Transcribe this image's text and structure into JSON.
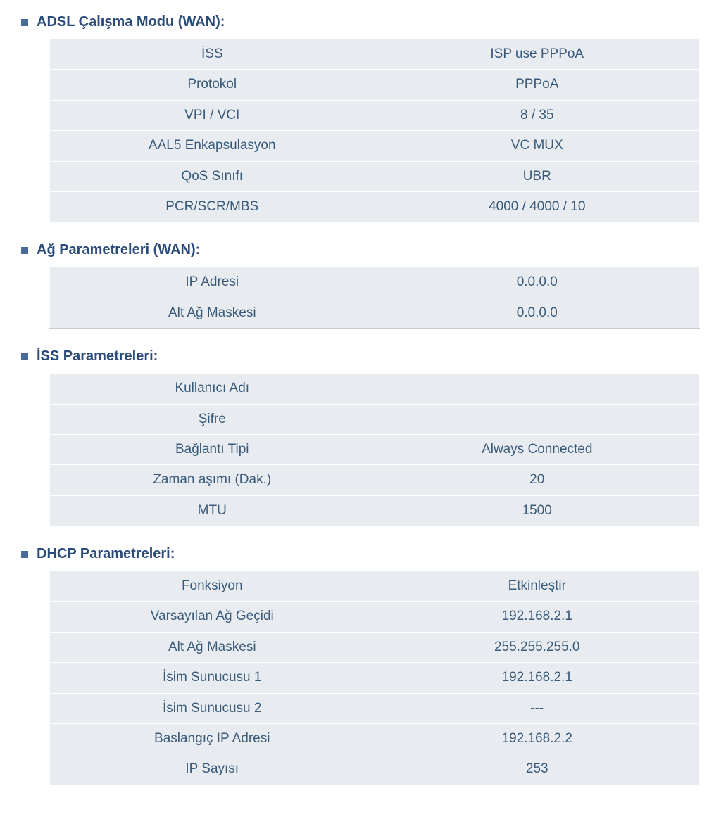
{
  "colors": {
    "title": "#2a4a7a",
    "text": "#3a5a7a",
    "cell_bg": "#e8ecf0",
    "cell_border": "#ffffff",
    "bullet": "#4a6a9a",
    "bottom_border": "#c8ccd0"
  },
  "typography": {
    "title_fontsize": 20,
    "cell_fontsize": 19,
    "font_family": "Verdana, Arial, sans-serif"
  },
  "sections": [
    {
      "id": "adsl",
      "title": "ADSL Çalışma Modu (WAN):",
      "rows": [
        {
          "label": "İSS",
          "value": "ISP use PPPoA"
        },
        {
          "label": "Protokol",
          "value": "PPPoA"
        },
        {
          "label": "VPI / VCI",
          "value": "8 / 35"
        },
        {
          "label": "AAL5 Enkapsulasyon",
          "value": "VC MUX"
        },
        {
          "label": "QoS Sınıfı",
          "value": "UBR"
        },
        {
          "label": "PCR/SCR/MBS",
          "value": "4000 / 4000 / 10"
        }
      ]
    },
    {
      "id": "wan",
      "title": "Ağ Parametreleri (WAN):",
      "rows": [
        {
          "label": "IP Adresi",
          "value": "0.0.0.0"
        },
        {
          "label": "Alt Ağ Maskesi",
          "value": "0.0.0.0"
        }
      ]
    },
    {
      "id": "iss",
      "title": "İSS Parametreleri:",
      "rows": [
        {
          "label": "Kullanıcı Adı",
          "value": ""
        },
        {
          "label": "Şifre",
          "value": ""
        },
        {
          "label": "Bağlantı Tipi",
          "value": "Always Connected"
        },
        {
          "label": "Zaman aşımı (Dak.)",
          "value": "20"
        },
        {
          "label": "MTU",
          "value": "1500"
        }
      ]
    },
    {
      "id": "dhcp",
      "title": "DHCP Parametreleri:",
      "rows": [
        {
          "label": "Fonksiyon",
          "value": "Etkinleştir"
        },
        {
          "label": "Varsayılan Ağ Geçidi",
          "value": "192.168.2.1"
        },
        {
          "label": "Alt Ağ Maskesi",
          "value": "255.255.255.0"
        },
        {
          "label": "İsim Sunucusu 1",
          "value": "192.168.2.1"
        },
        {
          "label": "İsim Sunucusu 2",
          "value": "---"
        },
        {
          "label": "Baslangıç IP Adresi",
          "value": "192.168.2.2"
        },
        {
          "label": "IP Sayısı",
          "value": "253"
        }
      ]
    }
  ]
}
